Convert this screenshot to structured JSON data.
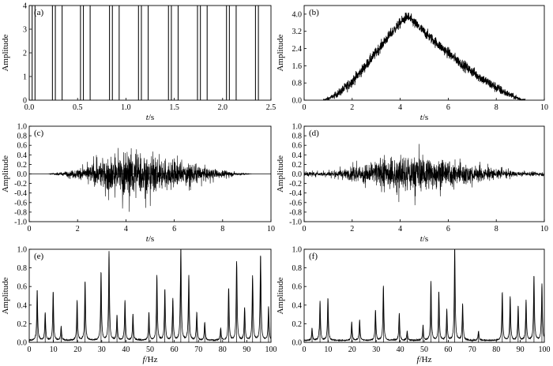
{
  "chart_data": [
    {
      "id": "a",
      "type": "line",
      "panel_label": "(a)",
      "xlabel_var": "t",
      "xlabel_unit": "/s",
      "ylabel": "Amplitude",
      "xlim": [
        0,
        2.5
      ],
      "ylim": [
        0,
        4
      ],
      "xticks": [
        0.0,
        0.5,
        1.0,
        1.5,
        2.0,
        2.5
      ],
      "xtick_labels": [
        "0.0",
        "0.5",
        "1.0",
        "1.5",
        "2.0",
        "2.5"
      ],
      "yticks": [
        0,
        1,
        2,
        3,
        4
      ],
      "ytick_labels": [
        "0",
        "1",
        "2",
        "3",
        "4"
      ],
      "impulse_times": [
        0.03,
        0.06,
        0.24,
        0.27,
        0.34,
        0.53,
        0.56,
        0.63,
        0.83,
        0.86,
        0.93,
        1.13,
        1.16,
        1.23,
        1.44,
        1.47,
        1.54,
        1.74,
        1.77,
        1.84,
        2.04,
        2.07,
        2.14,
        2.34,
        2.37
      ],
      "impulse_amplitude": 4,
      "description": "periodic impulse train"
    },
    {
      "id": "b",
      "type": "line",
      "panel_label": "(b)",
      "xlabel_var": "t",
      "xlabel_unit": "/s",
      "ylabel": "Amplitude",
      "xlim": [
        0,
        10
      ],
      "ylim": [
        0,
        4.4
      ],
      "xticks": [
        0,
        2,
        4,
        6,
        8,
        10
      ],
      "xtick_labels": [
        "0",
        "2",
        "4",
        "6",
        "8",
        "10"
      ],
      "yticks": [
        0.0,
        0.8,
        1.6,
        2.4,
        3.2,
        4.0
      ],
      "ytick_labels": [
        "0.0",
        "0.8",
        "1.6",
        "2.4",
        "3.2",
        "4.0"
      ],
      "envelope": {
        "start": 0.8,
        "peak_t": 4.3,
        "peak_value": 3.9,
        "end": 9.2
      }
    },
    {
      "id": "c",
      "type": "line",
      "panel_label": "(c)",
      "xlabel_var": "t",
      "xlabel_unit": "/s",
      "ylabel": "Amplitude",
      "xlim": [
        0,
        10
      ],
      "ylim": [
        -1.0,
        1.0
      ],
      "xticks": [
        0,
        2,
        4,
        6,
        8,
        10
      ],
      "xtick_labels": [
        "0",
        "2",
        "4",
        "6",
        "8",
        "10"
      ],
      "yticks": [
        -1.0,
        -0.8,
        -0.6,
        -0.4,
        -0.2,
        0.0,
        0.2,
        0.4,
        0.6,
        0.8,
        1.0
      ],
      "ytick_labels": [
        "-1.0",
        "-0.8",
        "-0.6",
        "-0.4",
        "-0.2",
        "0.0",
        "0.2",
        "0.4",
        "0.6",
        "0.8",
        "1.0"
      ],
      "envelope": {
        "start": 0.8,
        "peak_t": 4.3,
        "peak_value": 0.72,
        "end": 9.2
      },
      "zero_line": true
    },
    {
      "id": "d",
      "type": "line",
      "panel_label": "(d)",
      "xlabel_var": "t",
      "xlabel_unit": "/s",
      "ylabel": "Amplitude",
      "xlim": [
        0,
        10
      ],
      "ylim": [
        -1.0,
        1.0
      ],
      "xticks": [
        0,
        2,
        4,
        6,
        8,
        10
      ],
      "xtick_labels": [
        "0",
        "2",
        "4",
        "6",
        "8",
        "10"
      ],
      "yticks": [
        -1.0,
        -0.8,
        -0.6,
        -0.4,
        -0.2,
        0.0,
        0.2,
        0.4,
        0.6,
        0.8,
        1.0
      ],
      "ytick_labels": [
        "-1.0",
        "-0.8",
        "-0.6",
        "-0.4",
        "-0.2",
        "0.0",
        "0.2",
        "0.4",
        "0.6",
        "0.8",
        "1.0"
      ],
      "envelope": {
        "start": 0.0,
        "peak_t": 4.4,
        "peak_value": 0.6,
        "end": 10.0
      },
      "zero_line": false
    },
    {
      "id": "e",
      "type": "line",
      "panel_label": "(e)",
      "xlabel_var": "f",
      "xlabel_unit": "/Hz",
      "ylabel": "Amplitude",
      "xlim": [
        0,
        100
      ],
      "ylim": [
        0,
        1.0
      ],
      "xticks": [
        0,
        10,
        20,
        30,
        40,
        50,
        60,
        70,
        80,
        90,
        100
      ],
      "xtick_labels": [
        "0",
        "10",
        "20",
        "30",
        "40",
        "50",
        "60",
        "70",
        "80",
        "90",
        "100"
      ],
      "yticks": [
        0.0,
        0.2,
        0.4,
        0.6,
        0.8,
        1.0
      ],
      "ytick_labels": [
        "0.0",
        "0.2",
        "0.4",
        "0.6",
        "0.8",
        "1.0"
      ],
      "peaks": [
        {
          "f": 3.3,
          "a": 0.55
        },
        {
          "f": 6.6,
          "a": 0.3
        },
        {
          "f": 9.9,
          "a": 0.53
        },
        {
          "f": 13.2,
          "a": 0.15
        },
        {
          "f": 19.8,
          "a": 0.43
        },
        {
          "f": 23.1,
          "a": 0.64
        },
        {
          "f": 29.7,
          "a": 0.74
        },
        {
          "f": 33.0,
          "a": 0.95
        },
        {
          "f": 36.3,
          "a": 0.27
        },
        {
          "f": 39.6,
          "a": 0.43
        },
        {
          "f": 42.9,
          "a": 0.28
        },
        {
          "f": 49.5,
          "a": 0.3
        },
        {
          "f": 52.8,
          "a": 0.7
        },
        {
          "f": 56.1,
          "a": 0.55
        },
        {
          "f": 59.4,
          "a": 0.45
        },
        {
          "f": 62.7,
          "a": 1.0
        },
        {
          "f": 66.0,
          "a": 0.69
        },
        {
          "f": 69.3,
          "a": 0.3
        },
        {
          "f": 72.6,
          "a": 0.19
        },
        {
          "f": 79.2,
          "a": 0.13
        },
        {
          "f": 82.5,
          "a": 0.56
        },
        {
          "f": 85.8,
          "a": 0.85
        },
        {
          "f": 89.1,
          "a": 0.35
        },
        {
          "f": 92.4,
          "a": 0.69
        },
        {
          "f": 95.7,
          "a": 0.92
        },
        {
          "f": 99.0,
          "a": 0.36
        }
      ]
    },
    {
      "id": "f",
      "type": "line",
      "panel_label": "(f)",
      "xlabel_var": "f",
      "xlabel_unit": "/Hz",
      "ylabel": "Amplitude",
      "xlim": [
        0,
        100
      ],
      "ylim": [
        0,
        1.0
      ],
      "xticks": [
        0,
        10,
        20,
        30,
        40,
        50,
        60,
        70,
        80,
        90,
        100
      ],
      "xtick_labels": [
        "0",
        "10",
        "20",
        "30",
        "40",
        "50",
        "60",
        "70",
        "80",
        "90",
        "100"
      ],
      "yticks": [
        0.0,
        0.2,
        0.4,
        0.6,
        0.8,
        1.0
      ],
      "ytick_labels": [
        "0.0",
        "0.2",
        "0.4",
        "0.6",
        "0.8",
        "1.0"
      ],
      "peaks": [
        {
          "f": 3.3,
          "a": 0.13
        },
        {
          "f": 6.6,
          "a": 0.42
        },
        {
          "f": 9.9,
          "a": 0.46
        },
        {
          "f": 19.8,
          "a": 0.2
        },
        {
          "f": 23.1,
          "a": 0.22
        },
        {
          "f": 29.7,
          "a": 0.33
        },
        {
          "f": 33.0,
          "a": 0.59
        },
        {
          "f": 39.6,
          "a": 0.29
        },
        {
          "f": 42.9,
          "a": 0.1
        },
        {
          "f": 49.5,
          "a": 0.16
        },
        {
          "f": 52.8,
          "a": 0.63
        },
        {
          "f": 56.1,
          "a": 0.52
        },
        {
          "f": 59.4,
          "a": 0.33
        },
        {
          "f": 62.7,
          "a": 1.0
        },
        {
          "f": 66.0,
          "a": 0.39
        },
        {
          "f": 72.6,
          "a": 0.1
        },
        {
          "f": 82.5,
          "a": 0.52
        },
        {
          "f": 85.8,
          "a": 0.47
        },
        {
          "f": 89.1,
          "a": 0.37
        },
        {
          "f": 92.4,
          "a": 0.43
        },
        {
          "f": 95.7,
          "a": 0.7
        },
        {
          "f": 99.0,
          "a": 0.61
        }
      ]
    }
  ]
}
